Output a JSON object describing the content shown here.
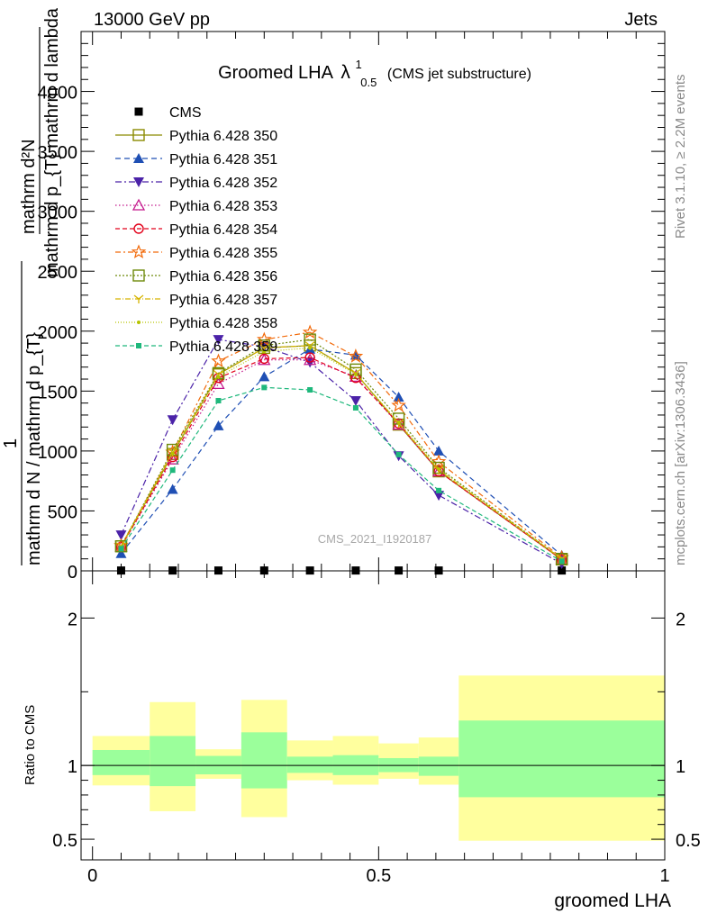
{
  "header": {
    "energy_label": "13000 GeV pp",
    "process_label": "Jets"
  },
  "side_labels": {
    "rivet": "Rivet 3.1.10, ≥ 2.2M events",
    "mcplots": "mcplots.cern.ch [arXiv:1306.3436]"
  },
  "watermark": "CMS_2021_I1920187",
  "chart_data": [
    {
      "type": "line",
      "title": "Groomed LHA",
      "title_symbol": "λ",
      "title_sup": "1",
      "title_sub": "0.5",
      "subtitle": "(CMS jet substructure)",
      "ylabel_numerator": "mathrm d²N",
      "ylabel_denominator": "mathrm d p_{T} mathrm d lambda",
      "ylabel_norm_numerator": "1",
      "ylabel_norm_denominator": "mathrm d N / mathrm d p_{T}",
      "ylim": [
        0,
        4500
      ],
      "yticks": [
        0,
        500,
        1000,
        1500,
        2000,
        2500,
        3000,
        3500,
        4000
      ],
      "ytick_labels": [
        "0",
        "500",
        "1000",
        "1500",
        "2000",
        "2500",
        "3000",
        "3500",
        "4000"
      ],
      "xlim": [
        -0.02,
        1.0
      ],
      "x": [
        0.05,
        0.14,
        0.22,
        0.3,
        0.38,
        0.46,
        0.535,
        0.605,
        0.82
      ],
      "legend_position": "top-left",
      "series": [
        {
          "name": "CMS",
          "color": "#000000",
          "marker": "square-filled",
          "dash": "none",
          "values": [
            3,
            3,
            3,
            3,
            3,
            3,
            3,
            3,
            3
          ]
        },
        {
          "name": "Pythia 6.428 350",
          "color": "#8a8a00",
          "marker": "square-open",
          "dash": "solid",
          "values": [
            205,
            975,
            1640,
            1860,
            1880,
            1650,
            1220,
            830,
            95
          ]
        },
        {
          "name": "Pythia 6.428 351",
          "color": "#1f4fb4",
          "marker": "triangle-up-filled",
          "dash": "6,4",
          "values": [
            145,
            680,
            1210,
            1620,
            1850,
            1800,
            1450,
            1000,
            130
          ]
        },
        {
          "name": "Pythia 6.428 352",
          "color": "#4b22a8",
          "marker": "triangle-down-filled",
          "dash": "7,3,2,3",
          "values": [
            300,
            1260,
            1930,
            1870,
            1740,
            1420,
            960,
            630,
            60
          ]
        },
        {
          "name": "Pythia 6.428 353",
          "color": "#c4178c",
          "marker": "triangle-up-open",
          "dash": "1.5,2.5",
          "values": [
            200,
            930,
            1560,
            1760,
            1760,
            1620,
            1220,
            830,
            95
          ]
        },
        {
          "name": "Pythia 6.428 354",
          "color": "#e2001a",
          "marker": "circle-open",
          "dash": "5,3",
          "values": [
            200,
            950,
            1610,
            1770,
            1780,
            1610,
            1230,
            830,
            95
          ]
        },
        {
          "name": "Pythia 6.428 355",
          "color": "#f26a0a",
          "marker": "star-open",
          "dash": "6,3,2,3",
          "values": [
            210,
            990,
            1750,
            1930,
            1990,
            1790,
            1380,
            910,
            110
          ]
        },
        {
          "name": "Pythia 6.428 356",
          "color": "#6e8a0a",
          "marker": "square-open",
          "dash": "2,2",
          "values": [
            205,
            1010,
            1650,
            1880,
            1930,
            1680,
            1270,
            860,
            100
          ]
        },
        {
          "name": "Pythia 6.428 357",
          "color": "#d6b400",
          "marker": "y-open",
          "dash": "6,2,1,2",
          "values": [
            205,
            990,
            1640,
            1860,
            1880,
            1650,
            1230,
            840,
            100
          ]
        },
        {
          "name": "Pythia 6.428 358",
          "color": "#b6c400",
          "marker": "dot",
          "dash": "1,2",
          "values": [
            200,
            980,
            1620,
            1830,
            1860,
            1640,
            1240,
            850,
            100
          ]
        },
        {
          "name": "Pythia 6.428 359",
          "color": "#1fb87c",
          "marker": "square-small-filled",
          "dash": "5,3",
          "values": [
            185,
            840,
            1420,
            1530,
            1510,
            1360,
            970,
            670,
            80
          ]
        }
      ]
    },
    {
      "type": "area",
      "ylabel": "Ratio to CMS",
      "xlabel": "groomed LHA",
      "ylim": [
        0.36,
        2.32
      ],
      "yticks": [
        0.5,
        1,
        2
      ],
      "ytick_labels": [
        "0.5",
        "1",
        "2"
      ],
      "xlim": [
        -0.02,
        1.0
      ],
      "xticks": [
        0,
        0.5,
        1
      ],
      "xtick_labels": [
        "0",
        "0.5",
        "1"
      ],
      "reference_line": 1,
      "bins": [
        {
          "x0": 0.0,
          "x1": 0.1,
          "stat": [
            0.935,
            1.105
          ],
          "total": [
            0.865,
            1.2
          ]
        },
        {
          "x0": 0.1,
          "x1": 0.18,
          "stat": [
            0.86,
            1.2
          ],
          "total": [
            0.69,
            1.43
          ]
        },
        {
          "x0": 0.18,
          "x1": 0.26,
          "stat": [
            0.94,
            1.065
          ],
          "total": [
            0.91,
            1.11
          ]
        },
        {
          "x0": 0.26,
          "x1": 0.34,
          "stat": [
            0.845,
            1.225
          ],
          "total": [
            0.65,
            1.445
          ]
        },
        {
          "x0": 0.34,
          "x1": 0.42,
          "stat": [
            0.95,
            1.06
          ],
          "total": [
            0.9,
            1.17
          ]
        },
        {
          "x0": 0.42,
          "x1": 0.5,
          "stat": [
            0.935,
            1.07
          ],
          "total": [
            0.87,
            1.2
          ]
        },
        {
          "x0": 0.5,
          "x1": 0.57,
          "stat": [
            0.955,
            1.05
          ],
          "total": [
            0.91,
            1.15
          ]
        },
        {
          "x0": 0.57,
          "x1": 0.64,
          "stat": [
            0.93,
            1.06
          ],
          "total": [
            0.87,
            1.19
          ]
        },
        {
          "x0": 0.64,
          "x1": 1.0,
          "stat": [
            0.785,
            1.305
          ],
          "total": [
            0.49,
            1.61
          ]
        }
      ],
      "colors": {
        "stat": "#9bff9b",
        "total": "#ffff9e"
      }
    }
  ]
}
